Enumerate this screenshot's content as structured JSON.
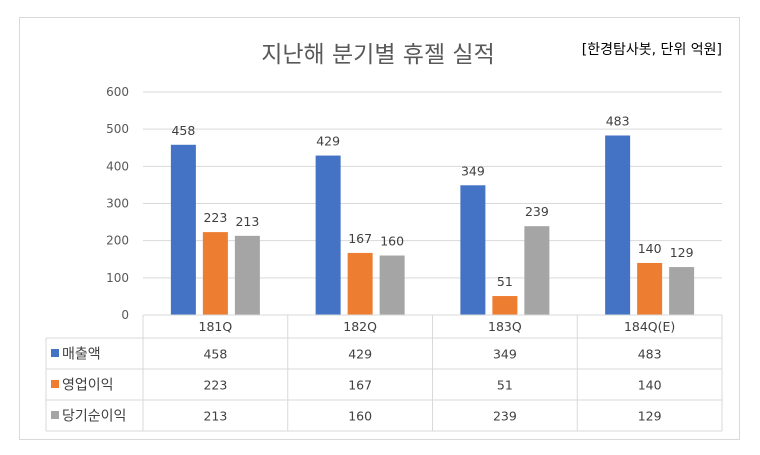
{
  "chart_data": {
    "type": "bar",
    "title": "지난해 분기별 휴젤 실적",
    "source_note": "[한경탐사봇, 단위 억원]",
    "categories": [
      "181Q",
      "182Q",
      "183Q",
      "184Q(E)"
    ],
    "y_ticks": [
      "600",
      "500",
      "400",
      "300",
      "200",
      "100",
      "0"
    ],
    "ylim": [
      0,
      600
    ],
    "grid": true,
    "legend": "data-table",
    "series": [
      {
        "name": "매출액",
        "color": "#4472c4",
        "values": [
          458,
          429,
          349,
          483
        ]
      },
      {
        "name": "영업이익",
        "color": "#ed7d31",
        "values": [
          223,
          167,
          51,
          140
        ]
      },
      {
        "name": "당기순이익",
        "color": "#a5a5a5",
        "values": [
          213,
          160,
          239,
          129
        ]
      }
    ]
  }
}
